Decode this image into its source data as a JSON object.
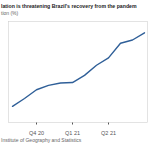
{
  "chart_data": {
    "type": "line",
    "title": "lation is threatening Brazil's recovery from the pandem",
    "subtitle": "tion (%)",
    "caption": "Institute of Geography and Statistics",
    "categories": [
      null,
      null,
      "Q4 20",
      null,
      null,
      "Q1 21",
      null,
      null,
      "Q2 21",
      null,
      null,
      null
    ],
    "values": [
      2.44,
      3.14,
      3.92,
      4.31,
      4.52,
      4.56,
      5.2,
      6.1,
      6.76,
      8.06,
      8.35,
      8.99
    ],
    "color": "#2f5f98",
    "ylim": [
      1,
      10
    ],
    "grid": false,
    "tick_labels": "x"
  }
}
